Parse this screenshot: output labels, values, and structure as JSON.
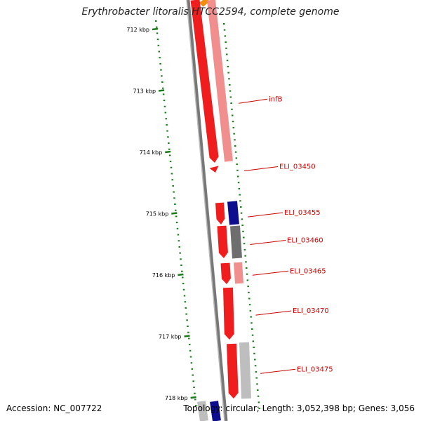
{
  "title": "Erythrobacter litoralis HTCC2594, complete genome",
  "accession": "Accession: NC_007722",
  "summary": "Topology: circular; Length: 3,052,398 bp; Genes: 3,056",
  "ticks": [
    {
      "label": "712 kbp",
      "kb": 712
    },
    {
      "label": "713 kbp",
      "kb": 713
    },
    {
      "label": "714 kbp",
      "kb": 714
    },
    {
      "label": "715 kbp",
      "kb": 715
    },
    {
      "label": "716 kbp",
      "kb": 716
    },
    {
      "label": "717 kbp",
      "kb": 717
    },
    {
      "label": "718 kbp",
      "kb": 718
    }
  ],
  "gene_labels": [
    {
      "name": "infB",
      "kb": 713.1
    },
    {
      "name": "ELI_03450",
      "kb": 714.2
    },
    {
      "name": "ELI_03455",
      "kb": 714.95
    },
    {
      "name": "ELI_03460",
      "kb": 715.4
    },
    {
      "name": "ELI_03465",
      "kb": 715.9
    },
    {
      "name": "ELI_03470",
      "kb": 716.55
    },
    {
      "name": "ELI_03475",
      "kb": 717.5
    }
  ],
  "colors": {
    "cds": "#ee1111",
    "cds_light": "#f08888",
    "dark_blue": "#000088",
    "dark_gray": "#666666",
    "light_gray": "#bbbbbb",
    "backbone": "#777777",
    "orange": "#ee8800",
    "tick_green": "#1a7a1a",
    "label_red": "#cc0000"
  }
}
